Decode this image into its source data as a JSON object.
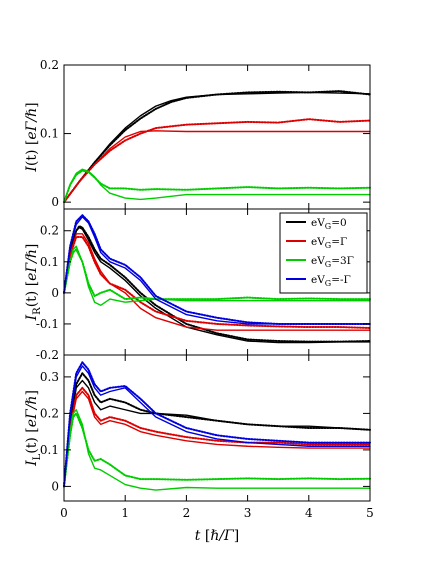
{
  "chart_data": [
    {
      "type": "line",
      "id": "top",
      "ylabel": "I(t) [eΓ/ℏ]",
      "ylabel_main": "I",
      "ylabel_rest": "(t) [",
      "ylabel_unit": "eΓ/ℏ",
      "ylabel_close": "]",
      "xlim": [
        0,
        5
      ],
      "ylim": [
        -0.01,
        0.2
      ],
      "yticks": [
        0,
        0.1,
        0.2
      ],
      "ytick_labels": [
        "0",
        "0.1",
        "0.2"
      ],
      "series": [
        {
          "color": "#000000",
          "dotted": true,
          "x": [
            0,
            0.25,
            0.5,
            0.75,
            1,
            1.25,
            1.5,
            1.75,
            2,
            2.5,
            3,
            3.5,
            4,
            4.5,
            5
          ],
          "y": [
            0,
            0.03,
            0.058,
            0.083,
            0.105,
            0.122,
            0.136,
            0.146,
            0.152,
            0.157,
            0.16,
            0.161,
            0.16,
            0.162,
            0.157
          ]
        },
        {
          "color": "#000000",
          "dotted": false,
          "x": [
            0,
            0.25,
            0.5,
            0.75,
            1,
            1.25,
            1.5,
            1.75,
            2,
            2.5,
            3,
            3.5,
            4,
            4.5,
            5
          ],
          "y": [
            0,
            0.03,
            0.058,
            0.085,
            0.108,
            0.126,
            0.14,
            0.148,
            0.153,
            0.157,
            0.158,
            0.159,
            0.16,
            0.159,
            0.158
          ]
        },
        {
          "color": "#dd0000",
          "dotted": true,
          "x": [
            0,
            0.25,
            0.5,
            0.75,
            1,
            1.25,
            1.5,
            2,
            2.5,
            3,
            3.5,
            4,
            4.5,
            5
          ],
          "y": [
            0,
            0.03,
            0.055,
            0.075,
            0.09,
            0.1,
            0.108,
            0.113,
            0.115,
            0.117,
            0.116,
            0.121,
            0.117,
            0.119
          ]
        },
        {
          "color": "#dd0000",
          "dotted": false,
          "x": [
            0,
            0.25,
            0.5,
            0.75,
            1,
            1.25,
            1.5,
            2,
            2.5,
            3,
            3.5,
            4,
            4.5,
            5
          ],
          "y": [
            0,
            0.03,
            0.055,
            0.078,
            0.095,
            0.103,
            0.104,
            0.103,
            0.103,
            0.103,
            0.103,
            0.103,
            0.103,
            0.103
          ]
        },
        {
          "color": "#00cc00",
          "dotted": true,
          "x": [
            0,
            0.1,
            0.2,
            0.3,
            0.4,
            0.5,
            0.6,
            0.75,
            1,
            1.25,
            1.5,
            2,
            2.5,
            3,
            3.5,
            4,
            4.5,
            5
          ],
          "y": [
            0,
            0.025,
            0.04,
            0.046,
            0.044,
            0.036,
            0.027,
            0.02,
            0.02,
            0.018,
            0.019,
            0.018,
            0.02,
            0.022,
            0.02,
            0.021,
            0.02,
            0.021
          ]
        },
        {
          "color": "#00cc00",
          "dotted": false,
          "x": [
            0,
            0.1,
            0.2,
            0.3,
            0.4,
            0.5,
            0.6,
            0.75,
            1,
            1.25,
            1.5,
            2,
            2.5,
            3,
            3.5,
            4,
            4.5,
            5
          ],
          "y": [
            0,
            0.026,
            0.042,
            0.048,
            0.045,
            0.037,
            0.025,
            0.013,
            0.006,
            0.004,
            0.006,
            0.011,
            0.011,
            0.011,
            0.011,
            0.011,
            0.011,
            0.011
          ]
        }
      ]
    },
    {
      "type": "line",
      "id": "middle",
      "ylabel": "I_R(t) [eΓ/ℏ]",
      "ylabel_main": "I",
      "ylabel_sub": "R",
      "ylabel_rest": "(t) [",
      "ylabel_unit": "eΓ/ℏ",
      "ylabel_close": "]",
      "xlim": [
        0,
        5
      ],
      "ylim": [
        -0.2,
        0.27
      ],
      "yticks": [
        -0.2,
        -0.1,
        0,
        0.1,
        0.2
      ],
      "ytick_labels": [
        "-0.2",
        "-0.1",
        "0",
        "0.1",
        "0.2"
      ],
      "legend": {
        "position": "top-right",
        "entries": [
          {
            "pre": "eV",
            "sub": "G",
            "post": "=0",
            "color": "#000000"
          },
          {
            "pre": "eV",
            "sub": "G",
            "post": "=Γ",
            "color": "#dd0000"
          },
          {
            "pre": "eV",
            "sub": "G",
            "post": "=3Γ",
            "color": "#00cc00"
          },
          {
            "pre": "eV",
            "sub": "G",
            "post": "=-Γ",
            "color": "#0000dd"
          }
        ]
      },
      "series": [
        {
          "color": "#000000",
          "dotted": true,
          "x": [
            0,
            0.1,
            0.2,
            0.25,
            0.3,
            0.4,
            0.5,
            0.6,
            0.75,
            1,
            1.25,
            1.5,
            2,
            2.5,
            3,
            3.5,
            4,
            4.5,
            5
          ],
          "y": [
            0,
            0.14,
            0.2,
            0.215,
            0.21,
            0.18,
            0.14,
            0.11,
            0.09,
            0.05,
            0.0,
            -0.04,
            -0.1,
            -0.13,
            -0.15,
            -0.155,
            -0.157,
            -0.157,
            -0.155
          ]
        },
        {
          "color": "#000000",
          "dotted": false,
          "x": [
            0,
            0.1,
            0.2,
            0.25,
            0.3,
            0.4,
            0.5,
            0.6,
            0.75,
            1,
            1.25,
            1.5,
            2,
            2.5,
            3,
            3.5,
            4,
            4.5,
            5
          ],
          "y": [
            0,
            0.14,
            0.2,
            0.21,
            0.205,
            0.17,
            0.13,
            0.1,
            0.08,
            0.04,
            -0.01,
            -0.05,
            -0.11,
            -0.135,
            -0.155,
            -0.16,
            -0.16,
            -0.158,
            -0.158
          ]
        },
        {
          "color": "#dd0000",
          "dotted": true,
          "x": [
            0,
            0.1,
            0.2,
            0.3,
            0.4,
            0.5,
            0.6,
            0.75,
            1,
            1.25,
            1.5,
            2,
            2.5,
            3,
            3.5,
            4,
            4.5,
            5
          ],
          "y": [
            0,
            0.12,
            0.18,
            0.18,
            0.15,
            0.1,
            0.06,
            0.03,
            0.01,
            -0.03,
            -0.06,
            -0.09,
            -0.1,
            -0.105,
            -0.108,
            -0.11,
            -0.11,
            -0.113
          ]
        },
        {
          "color": "#dd0000",
          "dotted": false,
          "x": [
            0,
            0.1,
            0.2,
            0.3,
            0.4,
            0.5,
            0.6,
            0.75,
            1,
            1.25,
            1.5,
            2,
            2.5,
            3,
            3.5,
            4,
            4.5,
            5
          ],
          "y": [
            0,
            0.12,
            0.19,
            0.19,
            0.16,
            0.11,
            0.07,
            0.03,
            0.0,
            -0.05,
            -0.08,
            -0.11,
            -0.12,
            -0.12,
            -0.12,
            -0.12,
            -0.12,
            -0.12
          ]
        },
        {
          "color": "#00cc00",
          "dotted": true,
          "x": [
            0,
            0.1,
            0.15,
            0.2,
            0.3,
            0.4,
            0.5,
            0.6,
            0.75,
            1,
            1.25,
            1.5,
            2,
            2.5,
            3,
            3.5,
            4,
            4.5,
            5
          ],
          "y": [
            0,
            0.1,
            0.13,
            0.14,
            0.1,
            0.03,
            -0.01,
            0.0,
            0.01,
            -0.02,
            -0.015,
            -0.02,
            -0.02,
            -0.02,
            -0.015,
            -0.02,
            -0.018,
            -0.02,
            -0.02
          ]
        },
        {
          "color": "#00cc00",
          "dotted": false,
          "x": [
            0,
            0.1,
            0.15,
            0.2,
            0.3,
            0.4,
            0.5,
            0.6,
            0.75,
            1,
            1.25,
            1.5,
            2,
            2.5,
            3,
            3.5,
            4,
            4.5,
            5
          ],
          "y": [
            0,
            0.1,
            0.14,
            0.15,
            0.1,
            0.02,
            -0.03,
            -0.04,
            -0.02,
            -0.03,
            -0.025,
            -0.02,
            -0.025,
            -0.025,
            -0.025,
            -0.025,
            -0.025,
            -0.025,
            -0.025
          ]
        },
        {
          "color": "#0000dd",
          "dotted": true,
          "x": [
            0,
            0.1,
            0.2,
            0.3,
            0.4,
            0.5,
            0.6,
            0.75,
            1,
            1.25,
            1.5,
            2,
            2.5,
            3,
            3.5,
            4,
            4.5,
            5
          ],
          "y": [
            0,
            0.15,
            0.23,
            0.25,
            0.23,
            0.19,
            0.14,
            0.11,
            0.09,
            0.05,
            -0.01,
            -0.06,
            -0.08,
            -0.095,
            -0.1,
            -0.1,
            -0.1,
            -0.1
          ]
        },
        {
          "color": "#0000dd",
          "dotted": false,
          "x": [
            0,
            0.1,
            0.2,
            0.3,
            0.4,
            0.5,
            0.6,
            0.75,
            1,
            1.25,
            1.5,
            2,
            2.5,
            3,
            3.5,
            4,
            4.5,
            5
          ],
          "y": [
            0,
            0.15,
            0.22,
            0.245,
            0.225,
            0.18,
            0.13,
            0.1,
            0.08,
            0.04,
            -0.02,
            -0.07,
            -0.09,
            -0.1,
            -0.1,
            -0.1,
            -0.1,
            -0.1
          ]
        }
      ]
    },
    {
      "type": "line",
      "id": "bottom",
      "ylabel": "I_L(t) [eΓ/ℏ]",
      "ylabel_main": "I",
      "ylabel_sub": "L",
      "ylabel_rest": "(t) [",
      "ylabel_unit": "eΓ/ℏ",
      "ylabel_close": "]",
      "xlabel": "t [ℏ/Γ]",
      "xlabel_main": "t",
      "xlabel_rest": " [",
      "xlabel_unit": "ℏ/Γ",
      "xlabel_close": "]",
      "xlim": [
        0,
        5
      ],
      "ylim": [
        -0.04,
        0.36
      ],
      "xticks": [
        0,
        1,
        2,
        3,
        4,
        5
      ],
      "xtick_labels": [
        "0",
        "1",
        "2",
        "3",
        "4",
        "5"
      ],
      "yticks": [
        0,
        0.1,
        0.2,
        0.3
      ],
      "ytick_labels": [
        "0",
        "0.1",
        "0.2",
        "0.3"
      ],
      "series": [
        {
          "color": "#000000",
          "dotted": true,
          "x": [
            0,
            0.1,
            0.2,
            0.3,
            0.4,
            0.5,
            0.6,
            0.75,
            1,
            1.25,
            1.5,
            2,
            2.5,
            3,
            3.5,
            4,
            4.5,
            5
          ],
          "y": [
            0,
            0.18,
            0.28,
            0.31,
            0.29,
            0.25,
            0.23,
            0.24,
            0.23,
            0.21,
            0.2,
            0.19,
            0.18,
            0.17,
            0.165,
            0.16,
            0.16,
            0.155
          ]
        },
        {
          "color": "#000000",
          "dotted": false,
          "x": [
            0,
            0.1,
            0.2,
            0.3,
            0.4,
            0.5,
            0.6,
            0.75,
            1,
            1.25,
            1.5,
            2,
            2.5,
            3,
            3.5,
            4,
            4.5,
            5
          ],
          "y": [
            0,
            0.17,
            0.27,
            0.29,
            0.27,
            0.23,
            0.21,
            0.22,
            0.21,
            0.2,
            0.2,
            0.195,
            0.18,
            0.17,
            0.165,
            0.165,
            0.16,
            0.155
          ]
        },
        {
          "color": "#dd0000",
          "dotted": true,
          "x": [
            0,
            0.1,
            0.2,
            0.3,
            0.4,
            0.5,
            0.6,
            0.75,
            1,
            1.25,
            1.5,
            2,
            2.5,
            3,
            3.5,
            4,
            4.5,
            5
          ],
          "y": [
            0,
            0.16,
            0.25,
            0.27,
            0.25,
            0.2,
            0.18,
            0.19,
            0.18,
            0.16,
            0.15,
            0.135,
            0.125,
            0.12,
            0.12,
            0.115,
            0.115,
            0.115
          ]
        },
        {
          "color": "#dd0000",
          "dotted": false,
          "x": [
            0,
            0.1,
            0.2,
            0.3,
            0.4,
            0.5,
            0.6,
            0.75,
            1,
            1.25,
            1.5,
            2,
            2.5,
            3,
            3.5,
            4,
            4.5,
            5
          ],
          "y": [
            0,
            0.16,
            0.24,
            0.26,
            0.24,
            0.19,
            0.17,
            0.18,
            0.17,
            0.15,
            0.14,
            0.125,
            0.115,
            0.11,
            0.107,
            0.105,
            0.105,
            0.105
          ]
        },
        {
          "color": "#00cc00",
          "dotted": true,
          "x": [
            0,
            0.1,
            0.15,
            0.2,
            0.3,
            0.4,
            0.5,
            0.6,
            0.75,
            1,
            1.25,
            1.5,
            2,
            2.5,
            3,
            3.5,
            4,
            4.5,
            5
          ],
          "y": [
            0,
            0.14,
            0.19,
            0.2,
            0.16,
            0.1,
            0.07,
            0.075,
            0.06,
            0.03,
            0.02,
            0.02,
            0.018,
            0.02,
            0.022,
            0.02,
            0.022,
            0.02,
            0.021
          ]
        },
        {
          "color": "#00cc00",
          "dotted": false,
          "x": [
            0,
            0.1,
            0.15,
            0.2,
            0.3,
            0.4,
            0.5,
            0.6,
            0.75,
            1,
            1.25,
            1.5,
            2,
            2.5,
            3,
            3.5,
            4,
            4.5,
            5
          ],
          "y": [
            0,
            0.15,
            0.2,
            0.21,
            0.17,
            0.09,
            0.05,
            0.045,
            0.03,
            0.005,
            -0.005,
            -0.01,
            -0.003,
            -0.005,
            -0.005,
            -0.005,
            -0.005,
            -0.005,
            -0.005
          ]
        },
        {
          "color": "#0000dd",
          "dotted": true,
          "x": [
            0,
            0.1,
            0.2,
            0.3,
            0.4,
            0.5,
            0.6,
            0.75,
            1,
            1.25,
            1.5,
            2,
            2.5,
            3,
            3.5,
            4,
            4.5,
            5
          ],
          "y": [
            0,
            0.2,
            0.31,
            0.34,
            0.32,
            0.28,
            0.26,
            0.27,
            0.275,
            0.24,
            0.2,
            0.16,
            0.14,
            0.13,
            0.125,
            0.12,
            0.12,
            0.12
          ]
        },
        {
          "color": "#0000dd",
          "dotted": false,
          "x": [
            0,
            0.1,
            0.2,
            0.3,
            0.4,
            0.5,
            0.6,
            0.75,
            1,
            1.25,
            1.5,
            2,
            2.5,
            3,
            3.5,
            4,
            4.5,
            5
          ],
          "y": [
            0,
            0.19,
            0.3,
            0.33,
            0.31,
            0.27,
            0.25,
            0.26,
            0.27,
            0.23,
            0.19,
            0.15,
            0.13,
            0.12,
            0.115,
            0.11,
            0.11,
            0.11
          ]
        }
      ]
    }
  ]
}
